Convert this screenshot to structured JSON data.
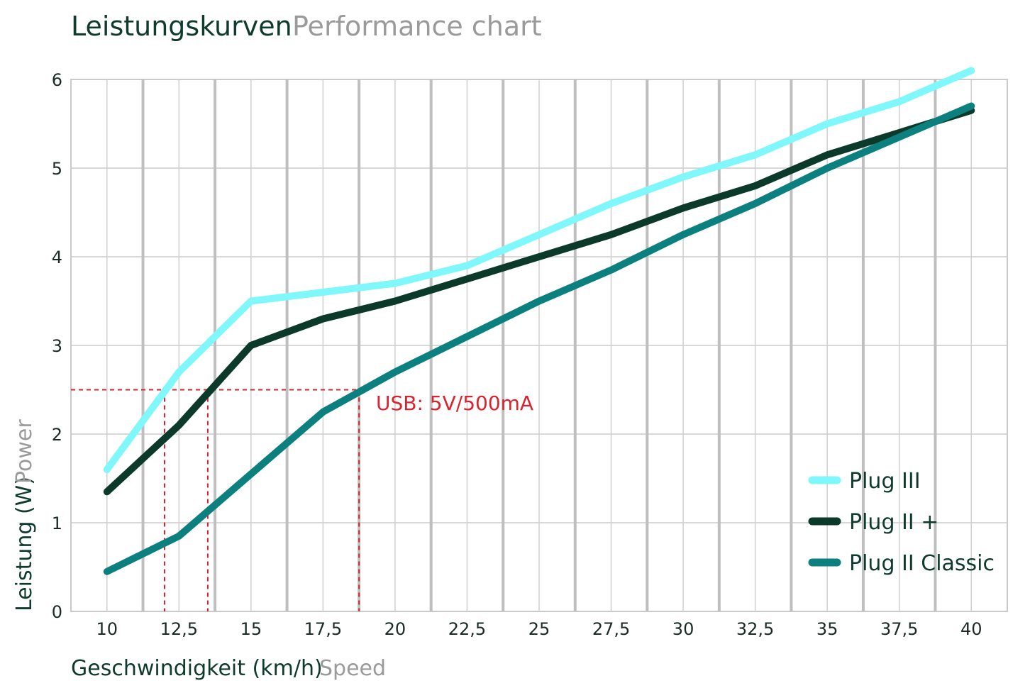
{
  "chart_data": {
    "type": "line",
    "title": "Leistungskurven",
    "subtitle": "Performance chart",
    "xlabel": "Geschwindigkeit (km/h)",
    "xlabel_sub": "Speed",
    "ylabel": "Leistung (W)",
    "ylabel_sub": "Power",
    "x": [
      10,
      12.5,
      15,
      17.5,
      20,
      22.5,
      25,
      27.5,
      30,
      32.5,
      35,
      37.5,
      40
    ],
    "x_tick_labels": [
      "10",
      "12,5",
      "15",
      "17,5",
      "20",
      "22,5",
      "25",
      "27,5",
      "30",
      "32,5",
      "35",
      "37,5",
      "40"
    ],
    "y_ticks": [
      0,
      1,
      2,
      3,
      4,
      5,
      6
    ],
    "y_tick_labels": [
      "0",
      "1",
      "2",
      "3",
      "4",
      "5",
      "6"
    ],
    "xlim": [
      8.75,
      41.25
    ],
    "ylim": [
      0,
      6
    ],
    "grid": true,
    "legend_position": "bottom-right",
    "series": [
      {
        "name": "Plug III",
        "color": "#7ff7fb",
        "values": [
          1.6,
          2.7,
          3.5,
          3.6,
          3.7,
          3.9,
          4.25,
          4.6,
          4.9,
          5.15,
          5.5,
          5.75,
          6.1
        ]
      },
      {
        "name": "Plug II +",
        "color": "#0b3a2b",
        "values": [
          1.35,
          2.1,
          3.0,
          3.3,
          3.5,
          3.75,
          4.0,
          4.25,
          4.55,
          4.8,
          5.15,
          5.4,
          5.65
        ]
      },
      {
        "name": "Plug II Classic",
        "color": "#0c7f7f",
        "values": [
          0.45,
          0.85,
          1.55,
          2.25,
          2.7,
          3.1,
          3.5,
          3.85,
          4.25,
          4.6,
          5.0,
          5.35,
          5.7
        ]
      }
    ],
    "annotation": {
      "text": "USB: 5V/500mA",
      "color": "#d9232e",
      "y": 2.5,
      "x_markers": [
        12,
        13.5,
        18.75
      ]
    }
  }
}
